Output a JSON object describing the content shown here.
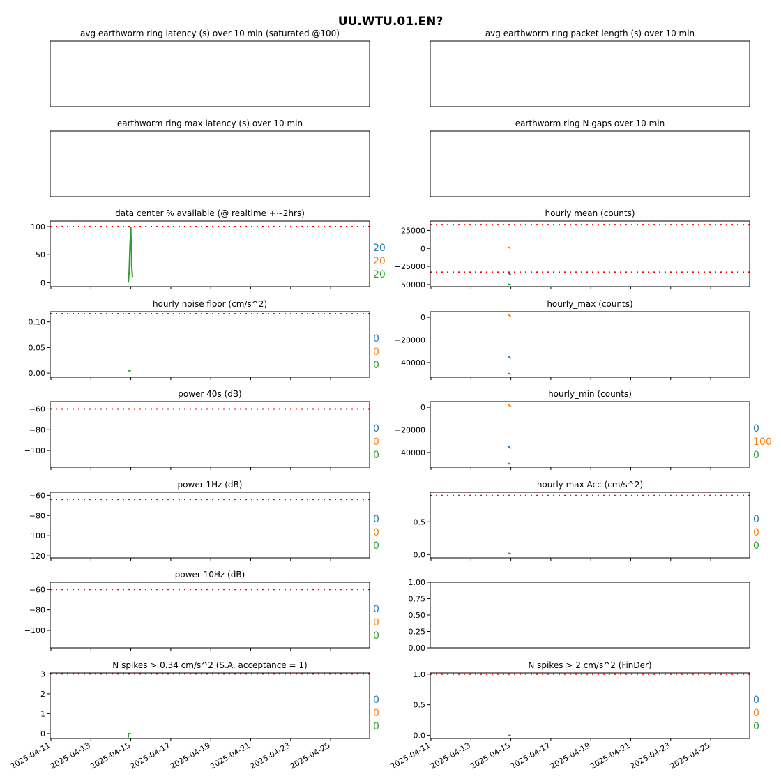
{
  "figure": {
    "title": "UU.WTU.01.EN?"
  },
  "x_ticks": [
    "2025-04-11",
    "2025-04-13",
    "2025-04-15",
    "2025-04-17",
    "2025-04-19",
    "2025-04-21",
    "2025-04-23",
    "2025-04-25"
  ],
  "colors": {
    "c0": "#1f77b4",
    "c1": "#ff7f0e",
    "c2": "#2ca02c",
    "threshold": "#ff0000"
  },
  "chart_data": [
    {
      "type": "line",
      "title": "avg earthworm ring latency (s)   over 10 min (saturated @100)",
      "empty": true,
      "series": []
    },
    {
      "type": "line",
      "title": "avg earthworm ring packet length (s)   over 10 min",
      "empty": true,
      "series": []
    },
    {
      "type": "line",
      "title": "earthworm ring max latency (s)   over 10 min",
      "empty": true,
      "series": []
    },
    {
      "type": "line",
      "title": "earthworm ring N gaps   over 10 min",
      "empty": true,
      "series": []
    },
    {
      "type": "line",
      "title": "data center % available (@ realtime +~2hrs)",
      "ylim": [
        -7,
        110
      ],
      "yticks": [
        0,
        50,
        100
      ],
      "threshold": [
        100
      ],
      "series": [
        {
          "color": "#2ca02c",
          "x": [
            "2025-04-14T21:00",
            "2025-04-14T22:00",
            "2025-04-14T23:00",
            "2025-04-15T00:00",
            "2025-04-15T01:00",
            "2025-04-15T02:00"
          ],
          "y": [
            0,
            20,
            65,
            100,
            30,
            10
          ]
        }
      ],
      "counts": [
        "20",
        "20",
        "20"
      ]
    },
    {
      "type": "line",
      "title": "hourly mean (counts)",
      "ylim": [
        -53000,
        38000
      ],
      "yticks": [
        -50000,
        -25000,
        0,
        25000
      ],
      "yticklabels": [
        "−50000",
        "−25000",
        "0",
        "25000"
      ],
      "threshold": [
        33000,
        -33000
      ],
      "series": [
        {
          "color": "#1f77b4",
          "x": [
            "2025-04-14T21:00",
            "2025-04-15T00:00"
          ],
          "y": [
            -34500,
            -36500
          ]
        },
        {
          "color": "#ff7f0e",
          "x": [
            "2025-04-14T21:00",
            "2025-04-15T00:00"
          ],
          "y": [
            2000,
            0
          ]
        },
        {
          "color": "#2ca02c",
          "x": [
            "2025-04-14T21:00",
            "2025-04-15T00:00"
          ],
          "y": [
            -49500,
            -50500
          ]
        }
      ]
    },
    {
      "type": "line",
      "title": "hourly noise floor (cm/s^2)",
      "ylim": [
        -0.008,
        0.12
      ],
      "yticks": [
        0,
        0.05,
        0.1
      ],
      "yticklabels": [
        "0.00",
        "0.05",
        "0.10"
      ],
      "threshold": [
        0.116
      ],
      "series": [
        {
          "color": "#2ca02c",
          "x": [
            "2025-04-14T21:00",
            "2025-04-15T00:00"
          ],
          "y": [
            0.005,
            0.004
          ]
        }
      ],
      "counts": [
        "0",
        "0",
        "0"
      ]
    },
    {
      "type": "line",
      "title": "hourly_max (counts)",
      "ylim": [
        -53000,
        5000
      ],
      "yticks": [
        -40000,
        -20000,
        0
      ],
      "yticklabels": [
        "−40000",
        "−20000",
        "0"
      ],
      "threshold": [],
      "series": [
        {
          "color": "#1f77b4",
          "x": [
            "2025-04-14T21:00",
            "2025-04-15T00:00"
          ],
          "y": [
            -34500,
            -36500
          ]
        },
        {
          "color": "#ff7f0e",
          "x": [
            "2025-04-14T21:00",
            "2025-04-15T00:00"
          ],
          "y": [
            2500,
            500
          ]
        },
        {
          "color": "#2ca02c",
          "x": [
            "2025-04-14T21:00",
            "2025-04-15T00:00"
          ],
          "y": [
            -49500,
            -50500
          ]
        }
      ]
    },
    {
      "type": "line",
      "title": "power 40s (dB)",
      "ylim": [
        -116,
        -53
      ],
      "yticks": [
        -100,
        -80,
        -60
      ],
      "yticklabels": [
        "−100",
        "−80",
        "−60"
      ],
      "threshold": [
        -60
      ],
      "series": [],
      "counts": [
        "0",
        "0",
        "0"
      ]
    },
    {
      "type": "line",
      "title": "hourly_min (counts)",
      "ylim": [
        -53000,
        5000
      ],
      "yticks": [
        -40000,
        -20000,
        0
      ],
      "yticklabels": [
        "−40000",
        "−20000",
        "0"
      ],
      "threshold": [],
      "series": [
        {
          "color": "#1f77b4",
          "x": [
            "2025-04-14T21:00",
            "2025-04-15T00:00"
          ],
          "y": [
            -34500,
            -36500
          ]
        },
        {
          "color": "#ff7f0e",
          "x": [
            "2025-04-14T21:00",
            "2025-04-15T00:00"
          ],
          "y": [
            2500,
            500
          ]
        },
        {
          "color": "#2ca02c",
          "x": [
            "2025-04-14T21:00",
            "2025-04-15T00:00"
          ],
          "y": [
            -49500,
            -50500
          ]
        }
      ],
      "counts": [
        "0",
        "100",
        "0"
      ]
    },
    {
      "type": "line",
      "title": "power 1Hz (dB)",
      "ylim": [
        -122,
        -57
      ],
      "yticks": [
        -120,
        -100,
        -80,
        -60
      ],
      "yticklabels": [
        "−120",
        "−100",
        "−80",
        "−60"
      ],
      "threshold": [
        -64
      ],
      "series": [],
      "counts": [
        "0",
        "0",
        "0"
      ]
    },
    {
      "type": "line",
      "title": "hourly max Acc (cm/s^2)",
      "ylim": [
        -0.05,
        0.95
      ],
      "yticks": [
        0,
        0.5
      ],
      "yticklabels": [
        "0.0",
        "0.5"
      ],
      "threshold": [
        0.9
      ],
      "series": [
        {
          "color": "#2ca02c",
          "x": [
            "2025-04-14T21:00",
            "2025-04-15T00:00"
          ],
          "y": [
            0.02,
            0.01
          ]
        }
      ],
      "counts": [
        "0",
        "0",
        "0"
      ]
    },
    {
      "type": "line",
      "title": "power 10Hz (dB)",
      "ylim": [
        -117,
        -53
      ],
      "yticks": [
        -100,
        -80,
        -60
      ],
      "yticklabels": [
        "−100",
        "−80",
        "−60"
      ],
      "threshold": [
        -60
      ],
      "series": [],
      "counts": [
        "0",
        "0",
        "0"
      ]
    },
    {
      "type": "line",
      "title": "",
      "ylim": [
        0,
        1
      ],
      "yticks": [
        0,
        0.25,
        0.5,
        0.75,
        1
      ],
      "yticklabels": [
        "0.00",
        "0.25",
        "0.50",
        "0.75",
        "1.00"
      ],
      "threshold": [],
      "series": []
    },
    {
      "type": "line",
      "title": "N spikes > 0.34 cm/s^2 (S.A. acceptance = 1)",
      "ylim": [
        -0.25,
        3.05
      ],
      "yticks": [
        0,
        1,
        2,
        3
      ],
      "threshold": [
        3
      ],
      "series": [
        {
          "color": "#2ca02c",
          "x": [
            "2025-04-14T21:00",
            "2025-04-14T21:00",
            "2025-04-15T00:00"
          ],
          "y": [
            -0.2,
            0,
            0
          ]
        }
      ],
      "counts": [
        "0",
        "0",
        "0"
      ]
    },
    {
      "type": "line",
      "title": "N spikes > 2 cm/s^2 (FinDer)",
      "ylim": [
        -0.05,
        1.02
      ],
      "yticks": [
        0,
        0.5,
        1
      ],
      "yticklabels": [
        "0.0",
        "0.5",
        "1.0"
      ],
      "threshold": [
        1
      ],
      "series": [
        {
          "color": "#2ca02c",
          "x": [
            "2025-04-14T21:00",
            "2025-04-15T00:00"
          ],
          "y": [
            0,
            0
          ]
        }
      ],
      "counts": [
        "0",
        "0",
        "0"
      ]
    }
  ]
}
